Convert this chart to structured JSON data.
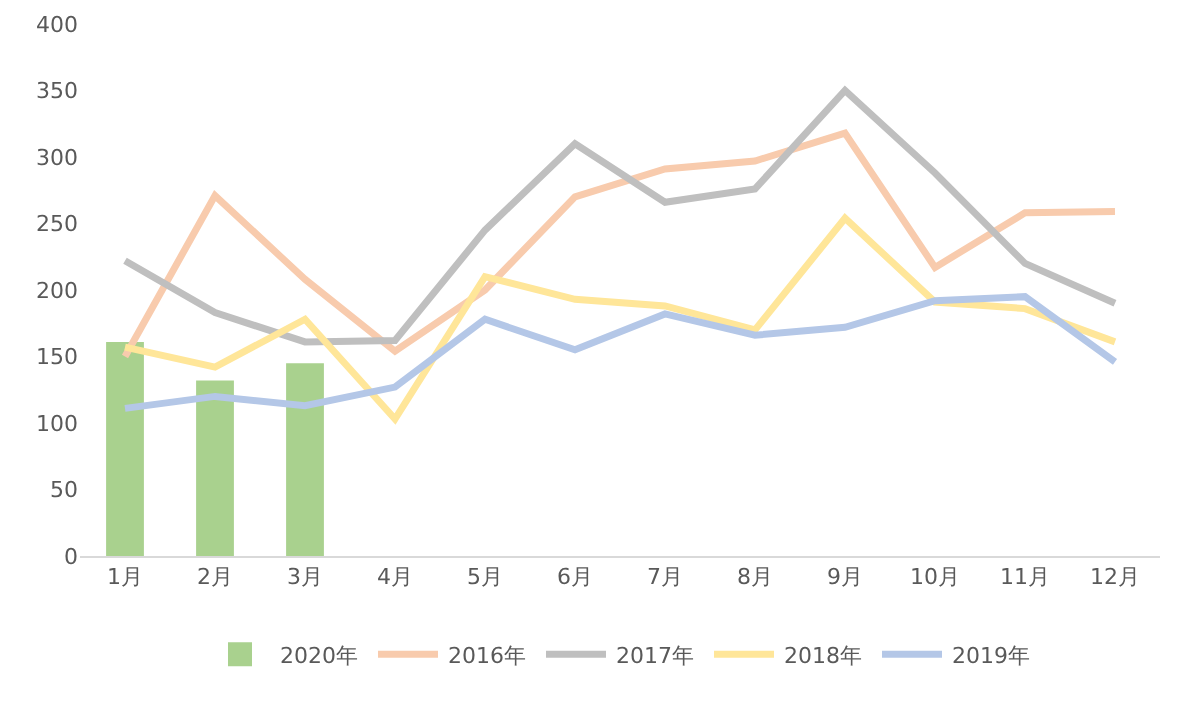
{
  "chart_data": {
    "type": "line",
    "categories": [
      "1月",
      "2月",
      "3月",
      "4月",
      "5月",
      "6月",
      "7月",
      "8月",
      "9月",
      "10月",
      "11月",
      "12月"
    ],
    "series": [
      {
        "name": "2020年",
        "type": "bar",
        "color": "#a9d18e",
        "values": [
          161,
          132,
          145,
          null,
          null,
          null,
          null,
          null,
          null,
          null,
          null,
          null
        ]
      },
      {
        "name": "2016年",
        "color": "#f8cbad",
        "values": [
          150,
          271,
          208,
          154,
          200,
          270,
          291,
          297,
          318,
          217,
          258,
          259
        ]
      },
      {
        "name": "2017年",
        "color": "#bfbfbf",
        "values": [
          222,
          183,
          161,
          162,
          245,
          310,
          266,
          276,
          350,
          288,
          220,
          190
        ]
      },
      {
        "name": "2018年",
        "color": "#ffe699",
        "values": [
          157,
          142,
          178,
          103,
          210,
          193,
          188,
          170,
          254,
          191,
          186,
          161
        ]
      },
      {
        "name": "2019年",
        "color": "#b4c7e7",
        "values": [
          111,
          120,
          113,
          127,
          178,
          155,
          182,
          166,
          172,
          192,
          195,
          146
        ]
      }
    ],
    "ylim": [
      0,
      400
    ],
    "yticks": [
      0,
      50,
      100,
      150,
      200,
      250,
      300,
      350,
      400
    ],
    "grid": false,
    "legend": "bottom",
    "marker": "none",
    "line_style": "solid"
  }
}
